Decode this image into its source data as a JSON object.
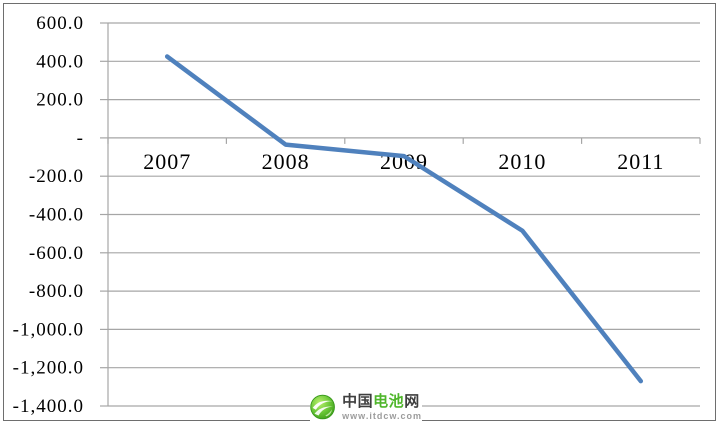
{
  "chart_data": {
    "type": "line",
    "title": "",
    "xlabel": "",
    "ylabel": "",
    "categories": [
      "2007",
      "2008",
      "2009",
      "2010",
      "2011"
    ],
    "series": [
      {
        "name": "",
        "values": [
          425,
          -35,
          -95,
          -485,
          -1270
        ]
      }
    ],
    "ylim": [
      -1400,
      600
    ],
    "y_ticks": [
      {
        "value": 600,
        "label": "600.0"
      },
      {
        "value": 400,
        "label": "400.0"
      },
      {
        "value": 200,
        "label": "200.0"
      },
      {
        "value": 0,
        "label": "-"
      },
      {
        "value": -200,
        "label": "-200.0"
      },
      {
        "value": -400,
        "label": "-400.0"
      },
      {
        "value": -600,
        "label": "-600.0"
      },
      {
        "value": -800,
        "label": "-800.0"
      },
      {
        "value": -1000,
        "label": "-1,000.0"
      },
      {
        "value": -1200,
        "label": "-1,200.0"
      },
      {
        "value": -1400,
        "label": "-1,400.0"
      }
    ],
    "grid": true,
    "legend_position": "none",
    "colors": {
      "line": "#4F81BD",
      "gridline": "#A6A6A6",
      "axis": "#A6A6A6",
      "tick_text": "#000000"
    }
  },
  "logo": {
    "title_part1": "中国",
    "title_part2": "电池",
    "title_part3": "网",
    "url": "www.itdcw.com",
    "colors": {
      "dark": "#3f3f3f",
      "green": "#4fb62b",
      "url_gray": "#9c9c9c",
      "globe_light": "#a5e35b",
      "globe_dark": "#49ac20",
      "globe_ring": "#36961b"
    }
  }
}
